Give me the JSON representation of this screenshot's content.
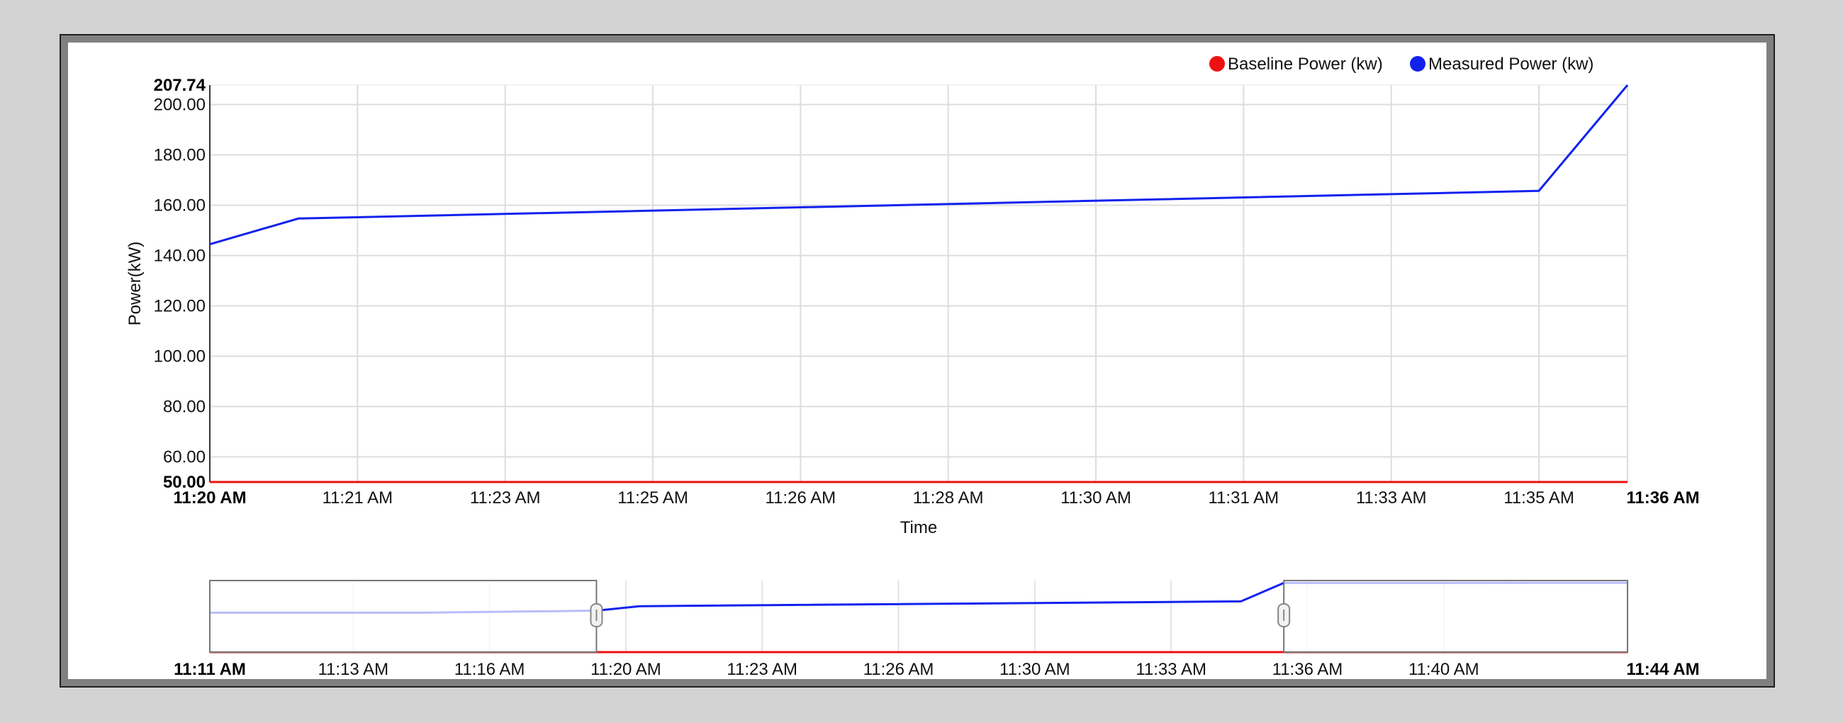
{
  "chart_data": [
    {
      "type": "line",
      "title": "",
      "xlabel": "Time",
      "ylabel": "Power(kW)",
      "ylim": [
        50,
        207.74
      ],
      "xlim": [
        "11:20 AM",
        "11:36 AM"
      ],
      "grid": true,
      "legend_position": "top-right",
      "y_ticks": [
        "60.00",
        "80.00",
        "100.00",
        "120.00",
        "140.00",
        "160.00",
        "180.00",
        "200.00"
      ],
      "y_min_label": "50.00",
      "y_max_label": "207.74",
      "x_ticks": [
        "11:21 AM",
        "11:23 AM",
        "11:25 AM",
        "11:26 AM",
        "11:28 AM",
        "11:30 AM",
        "11:31 AM",
        "11:33 AM",
        "11:35 AM"
      ],
      "x_start_label": "11:20 AM",
      "x_end_label": "11:36 AM",
      "series": [
        {
          "name": "Baseline Power (kw)",
          "color": "#ee1111",
          "x_minutes": [
            0,
            16
          ],
          "values": [
            50,
            50
          ]
        },
        {
          "name": "Measured Power (kw)",
          "color": "#1122ee",
          "x_minutes": [
            0,
            1.0,
            15.0,
            16.0
          ],
          "values": [
            144.5,
            154.7,
            165.7,
            207.74
          ]
        }
      ]
    },
    {
      "type": "line",
      "title": "",
      "role": "navigator",
      "xlim": [
        "11:11 AM",
        "11:44 AM"
      ],
      "x_ticks": [
        "11:13 AM",
        "11:16 AM",
        "11:20 AM",
        "11:23 AM",
        "11:26 AM",
        "11:30 AM",
        "11:33 AM",
        "11:36 AM",
        "11:40 AM"
      ],
      "x_start_label": "11:11 AM",
      "x_end_label": "11:44 AM",
      "selected_range": [
        "11:20 AM",
        "11:36 AM"
      ],
      "series": [
        {
          "name": "Baseline Power (kw)",
          "color": "#ee1111",
          "x_minutes": [
            0,
            33
          ],
          "values": [
            50,
            50
          ]
        },
        {
          "name": "Measured Power (kw)",
          "color": "#1122ee",
          "x_minutes": [
            0,
            5,
            9,
            10,
            24,
            25,
            33
          ],
          "values": [
            140,
            140,
            144.5,
            154.7,
            165.7,
            207.74,
            208
          ]
        }
      ]
    }
  ]
}
